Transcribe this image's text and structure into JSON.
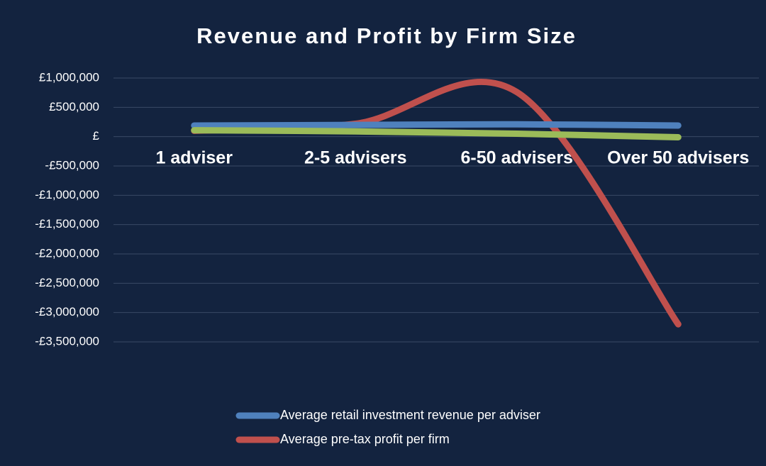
{
  "chart_data": {
    "type": "line",
    "title": "Revenue and Profit by Firm Size",
    "categories": [
      "1 adviser",
      "2-5 advisers",
      "6-50 advisers",
      "Over 50 advisers"
    ],
    "series": [
      {
        "name": "Average retail investment revenue per adviser",
        "color": "#4f81bd",
        "values": [
          190000,
          200000,
          210000,
          190000
        ]
      },
      {
        "name": "Average pre-tax profit per firm",
        "color": "#c0504d",
        "values": [
          100000,
          220000,
          760000,
          -3200000
        ]
      },
      {
        "color": "#9bbb59",
        "values": [
          110000,
          90000,
          50000,
          -10000
        ]
      }
    ],
    "ylim": [
      -3500000,
      1000000
    ],
    "yticks": [
      {
        "value": 1000000,
        "label": "£1,000,000"
      },
      {
        "value": 500000,
        "label": "£500,000"
      },
      {
        "value": 0,
        "label": "£"
      },
      {
        "value": -500000,
        "label": "-£500,000"
      },
      {
        "value": -1000000,
        "label": "-£1,000,000"
      },
      {
        "value": -1500000,
        "label": "-£1,500,000"
      },
      {
        "value": -2000000,
        "label": "-£2,000,000"
      },
      {
        "value": -2500000,
        "label": "-£2,500,000"
      },
      {
        "value": -3000000,
        "label": "-£3,000,000"
      },
      {
        "value": -3500000,
        "label": "-£3,500,000"
      }
    ],
    "grid": true,
    "smooth": true,
    "legend": "bottom"
  }
}
